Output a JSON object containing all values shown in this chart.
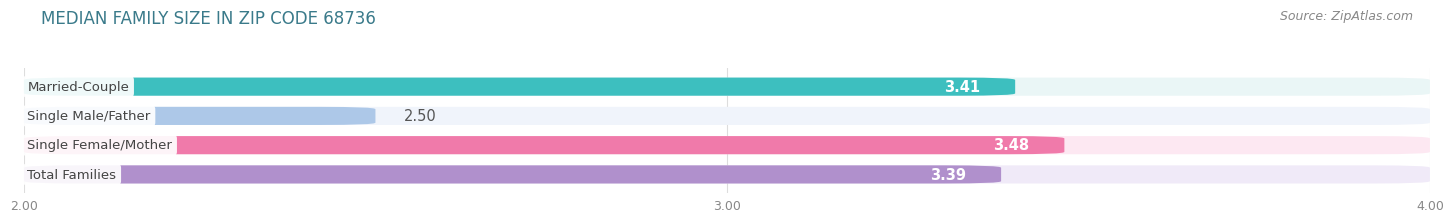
{
  "title": "MEDIAN FAMILY SIZE IN ZIP CODE 68736",
  "source": "Source: ZipAtlas.com",
  "categories": [
    "Married-Couple",
    "Single Male/Father",
    "Single Female/Mother",
    "Total Families"
  ],
  "values": [
    3.41,
    2.5,
    3.48,
    3.39
  ],
  "bar_colors": [
    "#3dbfbf",
    "#adc8e8",
    "#f07aaa",
    "#b090cc"
  ],
  "bar_bg_colors": [
    "#eaf6f6",
    "#f0f4fb",
    "#fde8f2",
    "#f0eaf8"
  ],
  "value_colors_inside": [
    "#ffffff",
    "#666666",
    "#ffffff",
    "#ffffff"
  ],
  "value_outside": [
    false,
    true,
    false,
    false
  ],
  "xlim": [
    2.0,
    4.0
  ],
  "xticks": [
    2.0,
    3.0,
    4.0
  ],
  "xtick_labels": [
    "2.00",
    "3.00",
    "4.00"
  ],
  "title_fontsize": 12,
  "source_fontsize": 9,
  "background_color": "#ffffff",
  "bar_height": 0.62,
  "bar_label_fontsize": 10.5,
  "cat_label_fontsize": 9.5
}
